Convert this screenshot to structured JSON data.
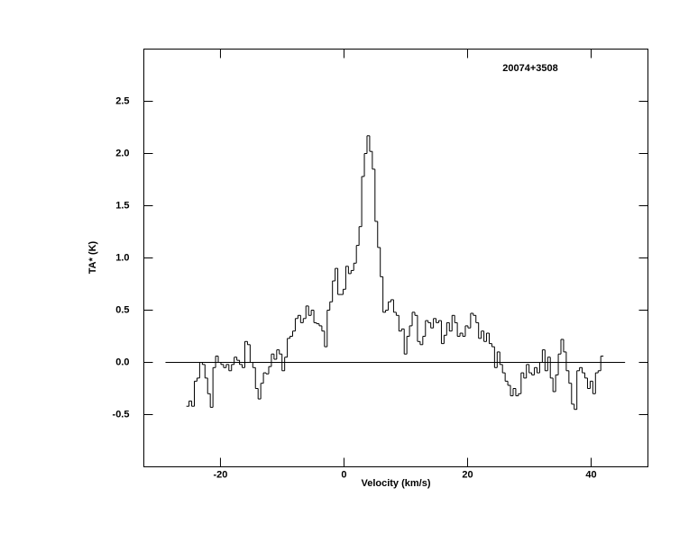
{
  "chart_data": {
    "type": "step",
    "annotation": "20074+3508",
    "xlabel": "Velocity (km/s)",
    "ylabel": "TA* (K)",
    "xlim": [
      -32.4,
      49.2
    ],
    "ylim": [
      -1.0,
      3.0
    ],
    "xticks": [
      -20,
      0,
      20,
      40
    ],
    "yticks": [
      {
        "value": -0.5,
        "label": "-0.5"
      },
      {
        "value": 0,
        "label": "0.0"
      },
      {
        "value": 0.5,
        "label": "0.5"
      },
      {
        "value": 1,
        "label": "1.0"
      },
      {
        "value": 1.5,
        "label": "1.5"
      },
      {
        "value": 2,
        "label": "2.0"
      },
      {
        "value": 2.5,
        "label": "2.5"
      }
    ],
    "color": "#000000",
    "baseline_x": [
      -28.9,
      45.5
    ],
    "baseline_y": 0,
    "x": [
      -25.3,
      -24.87,
      -24.44,
      -24.01,
      -23.58,
      -23.15,
      -22.72,
      -22.29,
      -21.86,
      -21.43,
      -21.0,
      -20.57,
      -20.14,
      -19.71,
      -19.28,
      -18.85,
      -18.42,
      -17.99,
      -17.56,
      -17.13,
      -16.7,
      -16.27,
      -15.84,
      -15.41,
      -14.98,
      -14.55,
      -14.12,
      -13.69,
      -13.26,
      -12.83,
      -12.4,
      -11.97,
      -11.54,
      -11.11,
      -10.68,
      -10.25,
      -9.82,
      -9.39,
      -8.96,
      -8.53,
      -8.1,
      -7.67,
      -7.24,
      -6.81,
      -6.38,
      -5.95,
      -5.52,
      -5.09,
      -4.66,
      -4.23,
      -3.8,
      -3.37,
      -2.94,
      -2.51,
      -2.08,
      -1.65,
      -1.22,
      -0.79,
      -0.36,
      0.07,
      0.5,
      0.93,
      1.36,
      1.79,
      2.22,
      2.65,
      3.08,
      3.51,
      3.94,
      4.37,
      4.8,
      5.23,
      5.66,
      6.09,
      6.52,
      6.95,
      7.38,
      7.81,
      8.24,
      8.67,
      9.1,
      9.53,
      9.96,
      10.39,
      10.82,
      11.25,
      11.68,
      12.11,
      12.54,
      12.97,
      13.4,
      13.83,
      14.26,
      14.69,
      15.12,
      15.55,
      15.98,
      16.41,
      16.84,
      17.27,
      17.7,
      18.13,
      18.56,
      18.99,
      19.42,
      19.85,
      20.28,
      20.71,
      21.14,
      21.57,
      22.0,
      22.43,
      22.86,
      23.29,
      23.72,
      24.15,
      24.58,
      25.01,
      25.44,
      25.87,
      26.3,
      26.73,
      27.16,
      27.59,
      28.02,
      28.45,
      28.88,
      29.31,
      29.74,
      30.17,
      30.6,
      31.03,
      31.46,
      31.89,
      32.32,
      32.75,
      33.18,
      33.61,
      34.04,
      34.47,
      34.9,
      35.33,
      35.76,
      36.19,
      36.62,
      37.05,
      37.48,
      37.91,
      38.34,
      38.77,
      39.2,
      39.63,
      40.06,
      40.49,
      40.92,
      41.35,
      41.78
    ],
    "values": [
      -0.42,
      -0.37,
      -0.42,
      -0.18,
      -0.15,
      0.0,
      -0.02,
      -0.15,
      -0.3,
      -0.43,
      -0.05,
      0.06,
      0.0,
      -0.02,
      -0.05,
      -0.02,
      -0.08,
      -0.02,
      0.05,
      0.02,
      -0.02,
      -0.05,
      0.2,
      0.17,
      0.0,
      -0.05,
      -0.25,
      -0.35,
      -0.2,
      -0.1,
      -0.11,
      -0.04,
      0.08,
      0.03,
      0.12,
      0.08,
      -0.08,
      0.05,
      0.23,
      0.25,
      0.3,
      0.42,
      0.45,
      0.38,
      0.42,
      0.54,
      0.45,
      0.5,
      0.38,
      0.37,
      0.35,
      0.3,
      0.15,
      0.5,
      0.58,
      0.78,
      0.9,
      0.65,
      0.65,
      0.7,
      0.92,
      0.85,
      0.88,
      0.95,
      1.12,
      1.3,
      1.78,
      2.0,
      2.17,
      2.02,
      1.85,
      1.35,
      1.1,
      0.82,
      0.48,
      0.5,
      0.58,
      0.6,
      0.48,
      0.45,
      0.3,
      0.32,
      0.08,
      0.25,
      0.35,
      0.48,
      0.45,
      0.2,
      0.17,
      0.25,
      0.4,
      0.38,
      0.33,
      0.42,
      0.38,
      0.4,
      0.18,
      0.26,
      0.38,
      0.3,
      0.45,
      0.38,
      0.25,
      0.28,
      0.25,
      0.35,
      0.33,
      0.47,
      0.45,
      0.38,
      0.23,
      0.3,
      0.2,
      0.28,
      0.18,
      0.15,
      -0.05,
      0.1,
      -0.02,
      -0.1,
      -0.18,
      -0.22,
      -0.32,
      -0.25,
      -0.32,
      -0.3,
      -0.1,
      -0.15,
      -0.02,
      -0.1,
      -0.12,
      -0.05,
      -0.1,
      0.0,
      0.12,
      -0.08,
      0.05,
      -0.15,
      -0.28,
      -0.12,
      0.08,
      0.22,
      0.1,
      -0.08,
      -0.2,
      -0.4,
      -0.45,
      -0.08,
      -0.05,
      -0.1,
      -0.15,
      -0.25,
      -0.18,
      -0.3,
      -0.1,
      -0.08,
      0.06
    ]
  }
}
